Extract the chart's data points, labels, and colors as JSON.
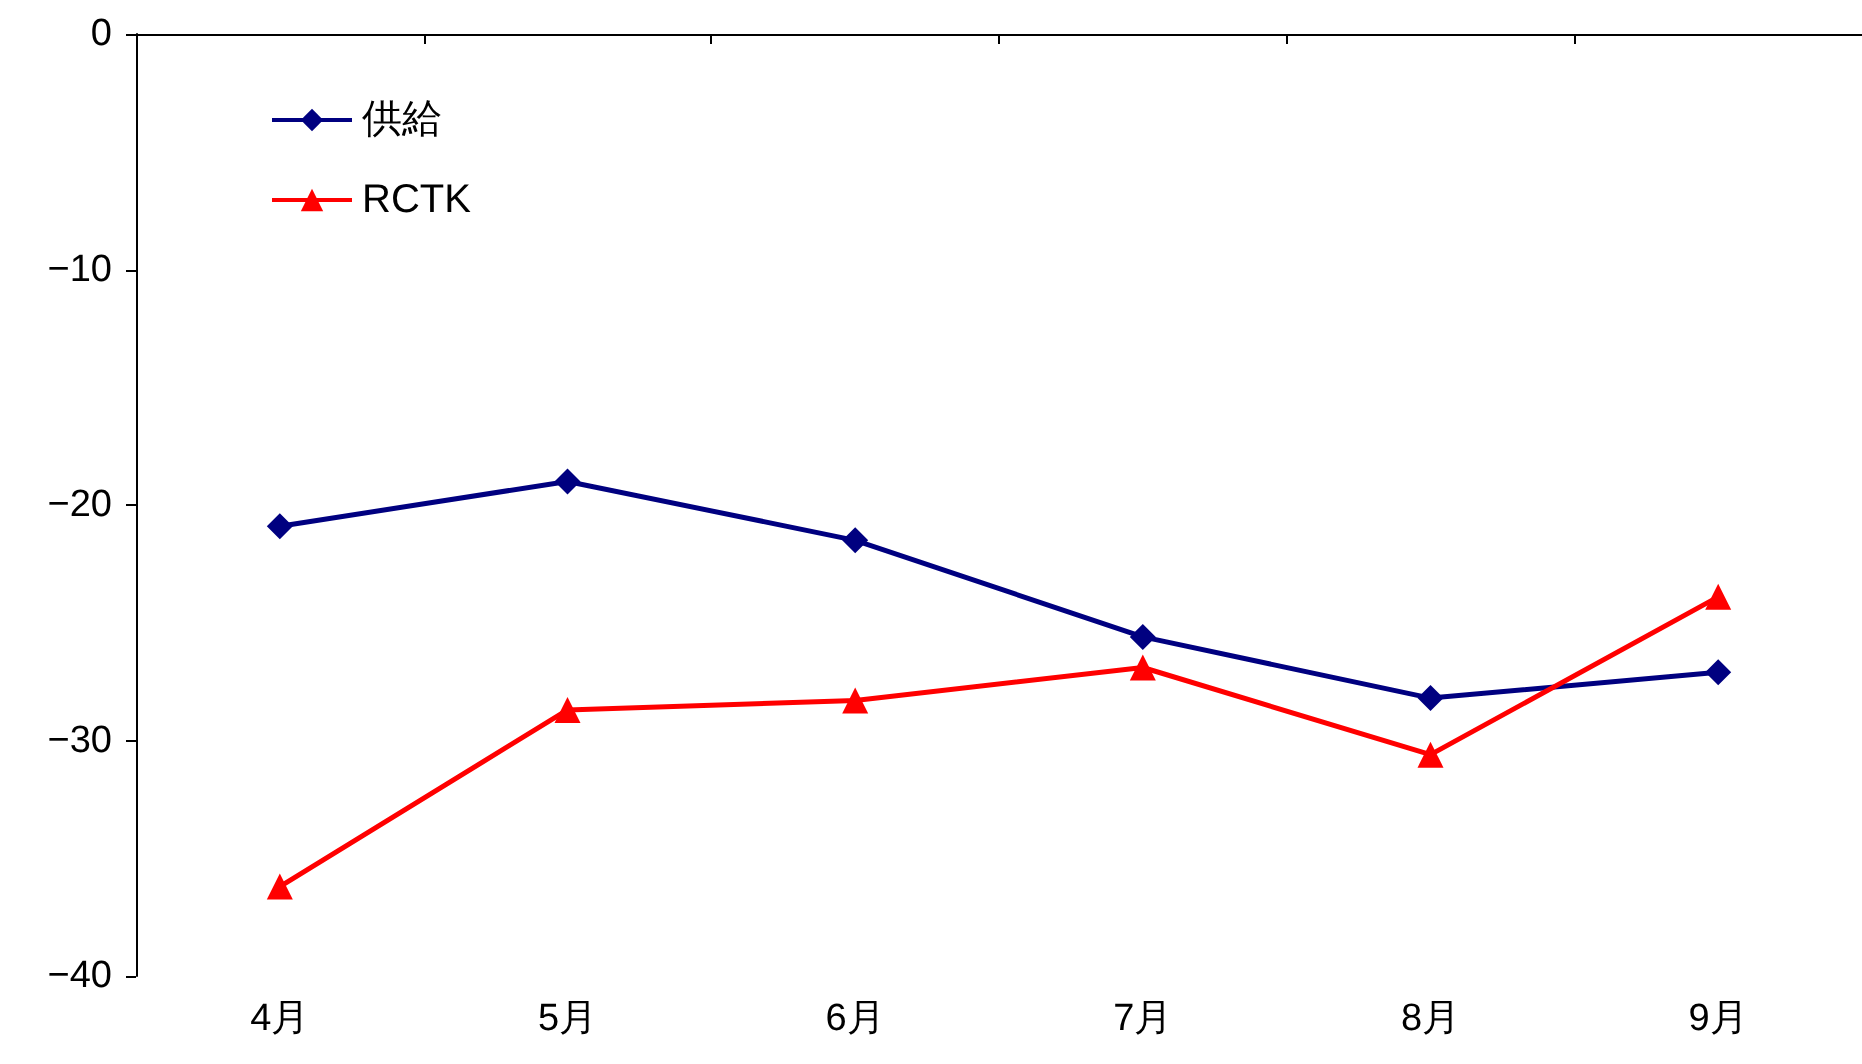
{
  "chart_data": {
    "type": "line",
    "categories": [
      "4月",
      "5月",
      "6月",
      "7月",
      "8月",
      "9月"
    ],
    "series": [
      {
        "name": "供給",
        "color": "#000080",
        "marker": "diamond",
        "values": [
          -20.9,
          -19.0,
          -21.5,
          -25.6,
          -28.2,
          -27.1
        ]
      },
      {
        "name": "RCTK",
        "color": "#ff0000",
        "marker": "triangle",
        "values": [
          -36.2,
          -28.7,
          -28.3,
          -26.9,
          -30.6,
          -23.9
        ]
      }
    ],
    "ylim": [
      -40,
      0
    ],
    "yticks": [
      0,
      -10,
      -20,
      -30,
      -40
    ],
    "grid": false,
    "legend": "top left",
    "line_style": "solid"
  }
}
